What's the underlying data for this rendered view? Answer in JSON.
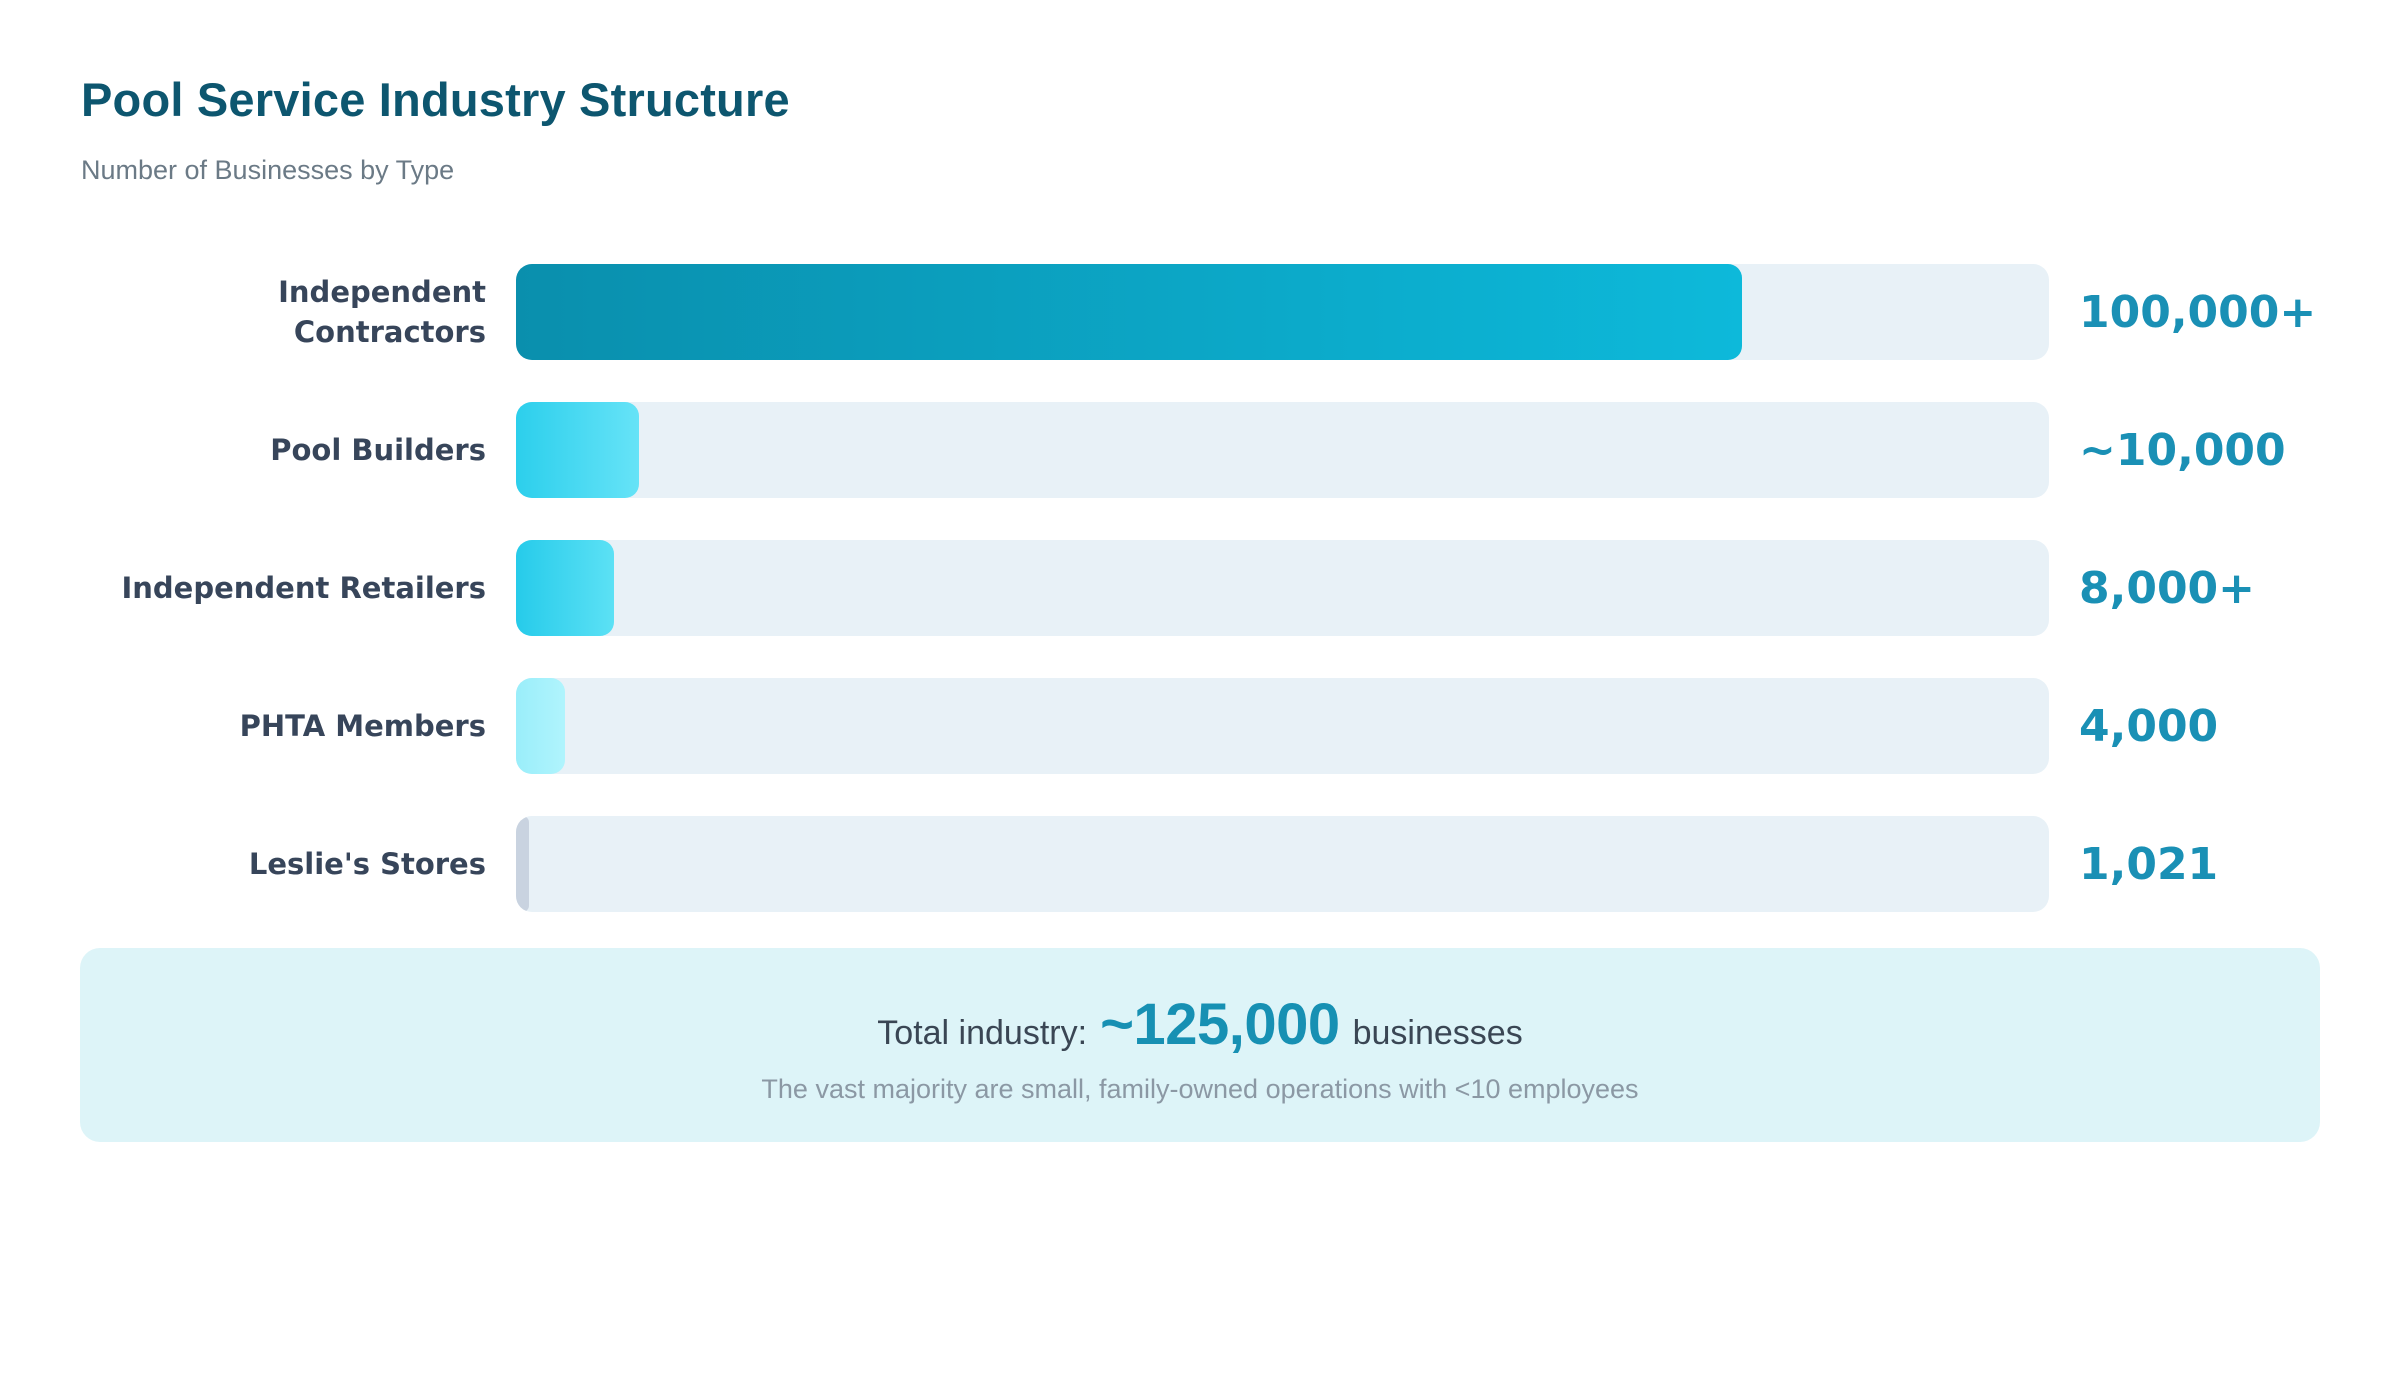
{
  "header": {
    "title": "Pool Service Industry Structure",
    "subtitle": "Number of Businesses by Type"
  },
  "chart_data": {
    "type": "bar",
    "orientation": "horizontal",
    "title": "Pool Service Industry Structure",
    "subtitle": "Number of Businesses by Type",
    "categories": [
      "Independent Contractors",
      "Pool Builders",
      "Independent Retailers",
      "PHTA Members",
      "Leslie's Stores"
    ],
    "values": [
      100000,
      10000,
      8000,
      4000,
      1021
    ],
    "value_labels": [
      "100,000+",
      "~10,000",
      "8,000+",
      "4,000",
      "1,021"
    ],
    "axis_max": 125000,
    "grid": false,
    "legend": false
  },
  "rows": [
    {
      "label": "Independent\nContractors",
      "value": 100000,
      "value_label": "100,000+",
      "fill_start": "#0a8fad",
      "fill_end": "#0db9da"
    },
    {
      "label": "Pool Builders",
      "value": 10000,
      "value_label": "~10,000",
      "fill_start": "#2ccfec",
      "fill_end": "#66e3f7"
    },
    {
      "label": "Independent Retailers",
      "value": 8000,
      "value_label": "8,000+",
      "fill_start": "#26cbea",
      "fill_end": "#5ce1f5"
    },
    {
      "label": "PHTA Members",
      "value": 4000,
      "value_label": "4,000",
      "fill_start": "#9aeefa",
      "fill_end": "#b0f4fd"
    },
    {
      "label": "Leslie's Stores",
      "value": 1021,
      "value_label": "1,021",
      "fill_start": "#c9d3e0",
      "fill_end": "#c9d3e0"
    }
  ],
  "summary": {
    "prefix": "Total industry:",
    "big": "~125,000",
    "suffix": "businesses",
    "note": "The vast majority are small, family-owned operations with <10 employees"
  },
  "colors": {
    "title": "#0d566f",
    "subtitle": "#6b7a86",
    "label": "#37455a",
    "value": "#1a90b5",
    "track": "#e8f1f7",
    "summary_bg": "#ddf4f8",
    "summary_big": "#1790b3",
    "summary_note": "#8b98a4"
  }
}
